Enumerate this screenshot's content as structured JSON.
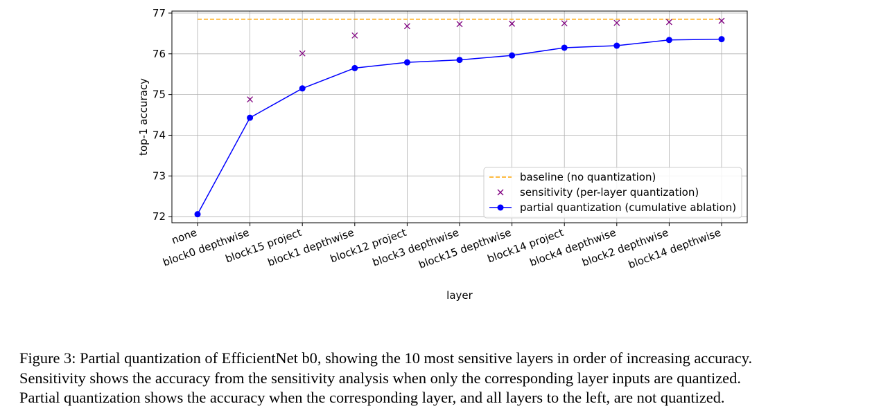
{
  "chart_data": {
    "type": "line",
    "title": "",
    "xlabel": "layer",
    "ylabel": "top-1 accuracy",
    "ylim": [
      71.85,
      77.05
    ],
    "yticks": [
      72,
      73,
      74,
      75,
      76,
      77
    ],
    "grid": true,
    "legend_position": "lower-right",
    "categories": [
      "none",
      "block0 depthwise",
      "block15 project",
      "block1 depthwise",
      "block12 project",
      "block3 depthwise",
      "block15 depthwise",
      "block14 project",
      "block4 depthwise",
      "block2 depthwise",
      "block14 depthwise"
    ],
    "series": [
      {
        "name": "baseline (no quantization)",
        "style": "dashed-line",
        "color": "#ffa500",
        "values": [
          76.85,
          76.85,
          76.85,
          76.85,
          76.85,
          76.85,
          76.85,
          76.85,
          76.85,
          76.85,
          76.85
        ]
      },
      {
        "name": "sensitivity (per-layer quantization)",
        "style": "x-markers",
        "color": "#800080",
        "values": [
          null,
          74.88,
          76.01,
          76.45,
          76.68,
          76.73,
          76.74,
          76.75,
          76.76,
          76.78,
          76.81
        ]
      },
      {
        "name": "partial quantization (cumulative ablation)",
        "style": "line-with-dots",
        "color": "#0000ff",
        "values": [
          72.06,
          74.43,
          75.15,
          75.65,
          75.79,
          75.85,
          75.96,
          76.15,
          76.2,
          76.34,
          76.36
        ]
      }
    ]
  },
  "caption": {
    "lines": [
      "Figure 3: Partial quantization of EfficientNet b0, showing the 10 most sensitive layers in order of increasing accuracy.",
      "Sensitivity shows the accuracy from the sensitivity analysis when only the corresponding layer inputs are quantized.",
      "Partial quantization shows the accuracy when the corresponding layer, and all layers to the left, are not quantized."
    ]
  }
}
